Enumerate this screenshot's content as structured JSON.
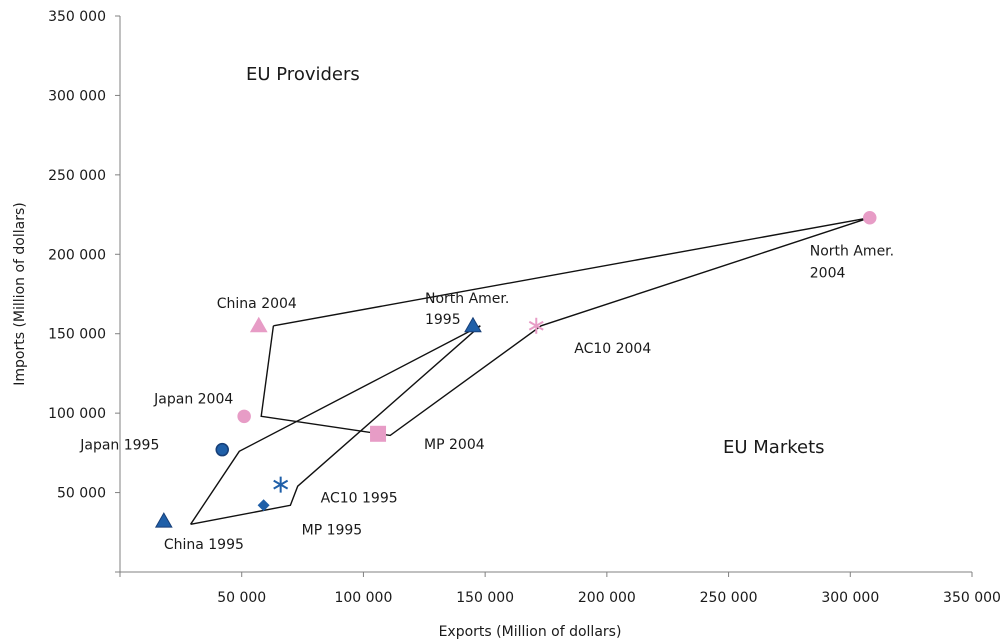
{
  "chart_data": {
    "type": "scatter",
    "xlabel": "Exports (Million of dollars)",
    "ylabel": "Imports (Million of dollars)",
    "xlim": [
      0,
      350000
    ],
    "ylim": [
      0,
      350000
    ],
    "x_ticks": [
      {
        "value": 50000,
        "label": "50 000"
      },
      {
        "value": 100000,
        "label": "100 000"
      },
      {
        "value": 150000,
        "label": "150 000"
      },
      {
        "value": 200000,
        "label": "200 000"
      },
      {
        "value": 250000,
        "label": "250 000"
      },
      {
        "value": 300000,
        "label": "300 000"
      },
      {
        "value": 350000,
        "label": "350 000"
      }
    ],
    "y_ticks": [
      {
        "value": 50000,
        "label": "50 000"
      },
      {
        "value": 100000,
        "label": "100 000"
      },
      {
        "value": 150000,
        "label": "150 000"
      },
      {
        "value": 200000,
        "label": "200 000"
      },
      {
        "value": 250000,
        "label": "250 000"
      },
      {
        "value": 300000,
        "label": "300 000"
      },
      {
        "value": 350000,
        "label": "350 000"
      }
    ],
    "grid": false,
    "region_labels": [
      "EU Providers",
      "EU Markets"
    ],
    "colors": {
      "1995": "#1f5fa8",
      "2004": "#e79cc6",
      "outline": "#111111"
    },
    "points": [
      {
        "id": "japan-1995",
        "lines": [
          "Japan 1995"
        ],
        "x": 42000,
        "y": 77000,
        "marker": "circle",
        "color": "#1f5fa8"
      },
      {
        "id": "china-1995",
        "lines": [
          "China 1995"
        ],
        "x": 18000,
        "y": 32000,
        "marker": "triangle",
        "color": "#1f5fa8"
      },
      {
        "id": "mp-1995",
        "lines": [
          "MP 1995"
        ],
        "x": 59000,
        "y": 42000,
        "marker": "diamond",
        "color": "#1f5fa8"
      },
      {
        "id": "ac10-1995",
        "lines": [
          "AC10 1995"
        ],
        "x": 66000,
        "y": 55000,
        "marker": "asterisk",
        "color": "#1f5fa8"
      },
      {
        "id": "north-amer-1995",
        "lines": [
          "North Amer.",
          "1995"
        ],
        "x": 145000,
        "y": 155000,
        "marker": "triangle",
        "color": "#1f5fa8"
      },
      {
        "id": "china-2004",
        "lines": [
          "China 2004"
        ],
        "x": 57000,
        "y": 155000,
        "marker": "triangle",
        "color": "#e79cc6"
      },
      {
        "id": "japan-2004",
        "lines": [
          "Japan 2004"
        ],
        "x": 51000,
        "y": 98000,
        "marker": "circle",
        "color": "#e79cc6"
      },
      {
        "id": "mp-2004",
        "lines": [
          "MP 2004"
        ],
        "x": 106000,
        "y": 87000,
        "marker": "square",
        "color": "#e79cc6"
      },
      {
        "id": "ac10-2004",
        "lines": [
          "AC10  2004"
        ],
        "x": 171000,
        "y": 155000,
        "marker": "asterisk",
        "color": "#e79cc6"
      },
      {
        "id": "north-amer-2004",
        "lines": [
          "North Amer.",
          "2004"
        ],
        "x": 308000,
        "y": 223000,
        "marker": "circle",
        "color": "#e79cc6"
      }
    ],
    "outlines": [
      {
        "name": "1995",
        "vertices": [
          [
            29000,
            30000
          ],
          [
            70000,
            42000
          ],
          [
            73000,
            54000
          ],
          [
            148000,
            155000
          ],
          [
            49000,
            76000
          ],
          [
            29000,
            30000
          ]
        ]
      },
      {
        "name": "2004",
        "vertices": [
          [
            63000,
            155000
          ],
          [
            308000,
            223000
          ],
          [
            173000,
            155000
          ],
          [
            111000,
            86000
          ],
          [
            58000,
            98000
          ],
          [
            63000,
            155000
          ]
        ]
      }
    ]
  }
}
